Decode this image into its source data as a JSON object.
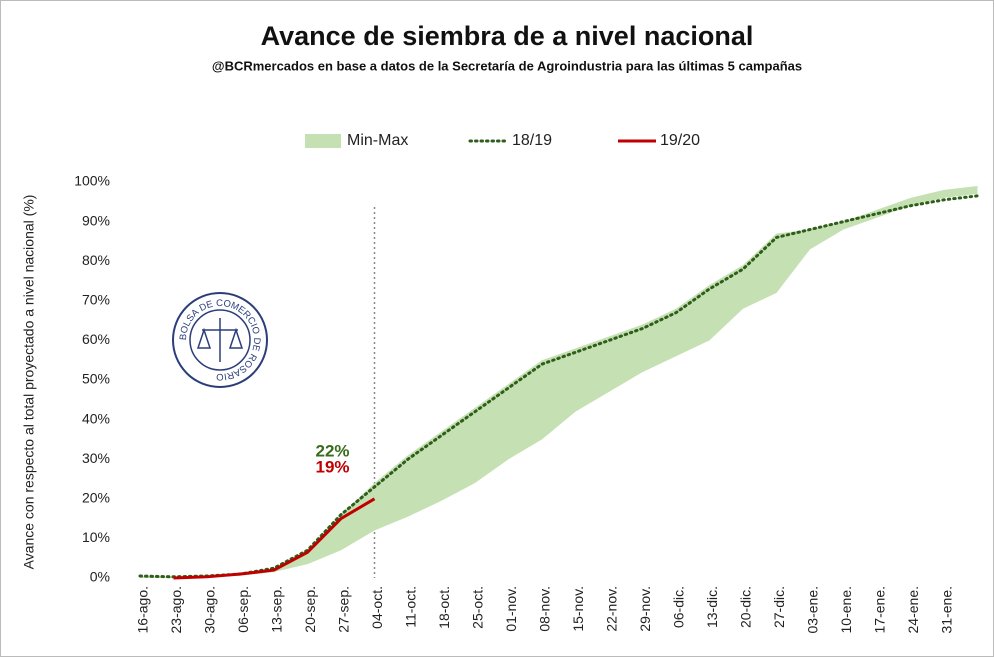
{
  "chart_data": {
    "type": "line",
    "title": "Avance de siembra de a nivel nacional",
    "subtitle": "@BCRmercados en base a datos de la Secretaría de Agroindustria para las últimas 5 campañas",
    "y_label": "Avance con respecto al total proyectado a nivel nacional (%)",
    "logo_text": "BOLSA DE COMERCIO DE ROSARIO",
    "categories": [
      "16-ago.",
      "23-ago.",
      "30-ago.",
      "06-sep.",
      "13-sep.",
      "20-sep.",
      "27-sep.",
      "04-oct.",
      "11-oct.",
      "18-oct.",
      "25-oct.",
      "01-nov.",
      "08-nov.",
      "15-nov.",
      "22-nov.",
      "29-nov.",
      "06-dic.",
      "13-dic.",
      "20-dic.",
      "27-dic.",
      "03-ene.",
      "10-ene.",
      "17-ene.",
      "24-ene.",
      "31-ene.",
      null
    ],
    "series": [
      {
        "name": "Min-Max",
        "kind": "band",
        "color": "#c5e0b3",
        "max": [
          0.5,
          0.3,
          0.5,
          1,
          2.5,
          7,
          16,
          24,
          31,
          37,
          43,
          49,
          55,
          58,
          61,
          64,
          68,
          74,
          79,
          87,
          88,
          90,
          93,
          96,
          98,
          99
        ],
        "min": [
          0,
          0,
          0.2,
          0.6,
          1.5,
          3.5,
          7,
          12,
          15.5,
          19.5,
          24,
          30,
          35,
          42,
          47,
          52,
          56,
          60,
          68,
          72,
          83,
          88,
          91,
          94,
          96,
          97
        ]
      },
      {
        "name": "18/19",
        "kind": "dotted",
        "color": "#2e5e1a",
        "values": [
          0.5,
          0.3,
          0.5,
          1,
          2.5,
          7,
          16,
          23,
          30,
          36,
          42,
          48,
          54,
          57,
          60,
          63,
          67,
          73,
          78,
          86,
          88,
          90,
          92,
          94,
          95.5,
          96.5
        ]
      },
      {
        "name": "19/20",
        "kind": "solid",
        "color": "#c00000",
        "values": [
          null,
          0,
          0.3,
          1,
          2,
          6.5,
          15,
          20,
          null,
          null,
          null,
          null,
          null,
          null,
          null,
          null,
          null,
          null,
          null,
          null,
          null,
          null,
          null,
          null,
          null,
          null
        ]
      }
    ],
    "ylim": [
      0,
      100
    ],
    "yticks": [
      {
        "value": 0,
        "label": "0%"
      },
      {
        "value": 10,
        "label": "10%"
      },
      {
        "value": 20,
        "label": "20%"
      },
      {
        "value": 30,
        "label": "30%"
      },
      {
        "value": 40,
        "label": "40%"
      },
      {
        "value": 50,
        "label": "50%"
      },
      {
        "value": 60,
        "label": "60%"
      },
      {
        "value": 70,
        "label": "70%"
      },
      {
        "value": 80,
        "label": "80%"
      },
      {
        "value": 90,
        "label": "90%"
      },
      {
        "value": 100,
        "label": "100%"
      }
    ],
    "vline": "04-oct.",
    "annotations": [
      {
        "text": "22%",
        "color": "#3a6b1e"
      },
      {
        "text": "19%",
        "color": "#c00000"
      }
    ],
    "legend": "top"
  }
}
